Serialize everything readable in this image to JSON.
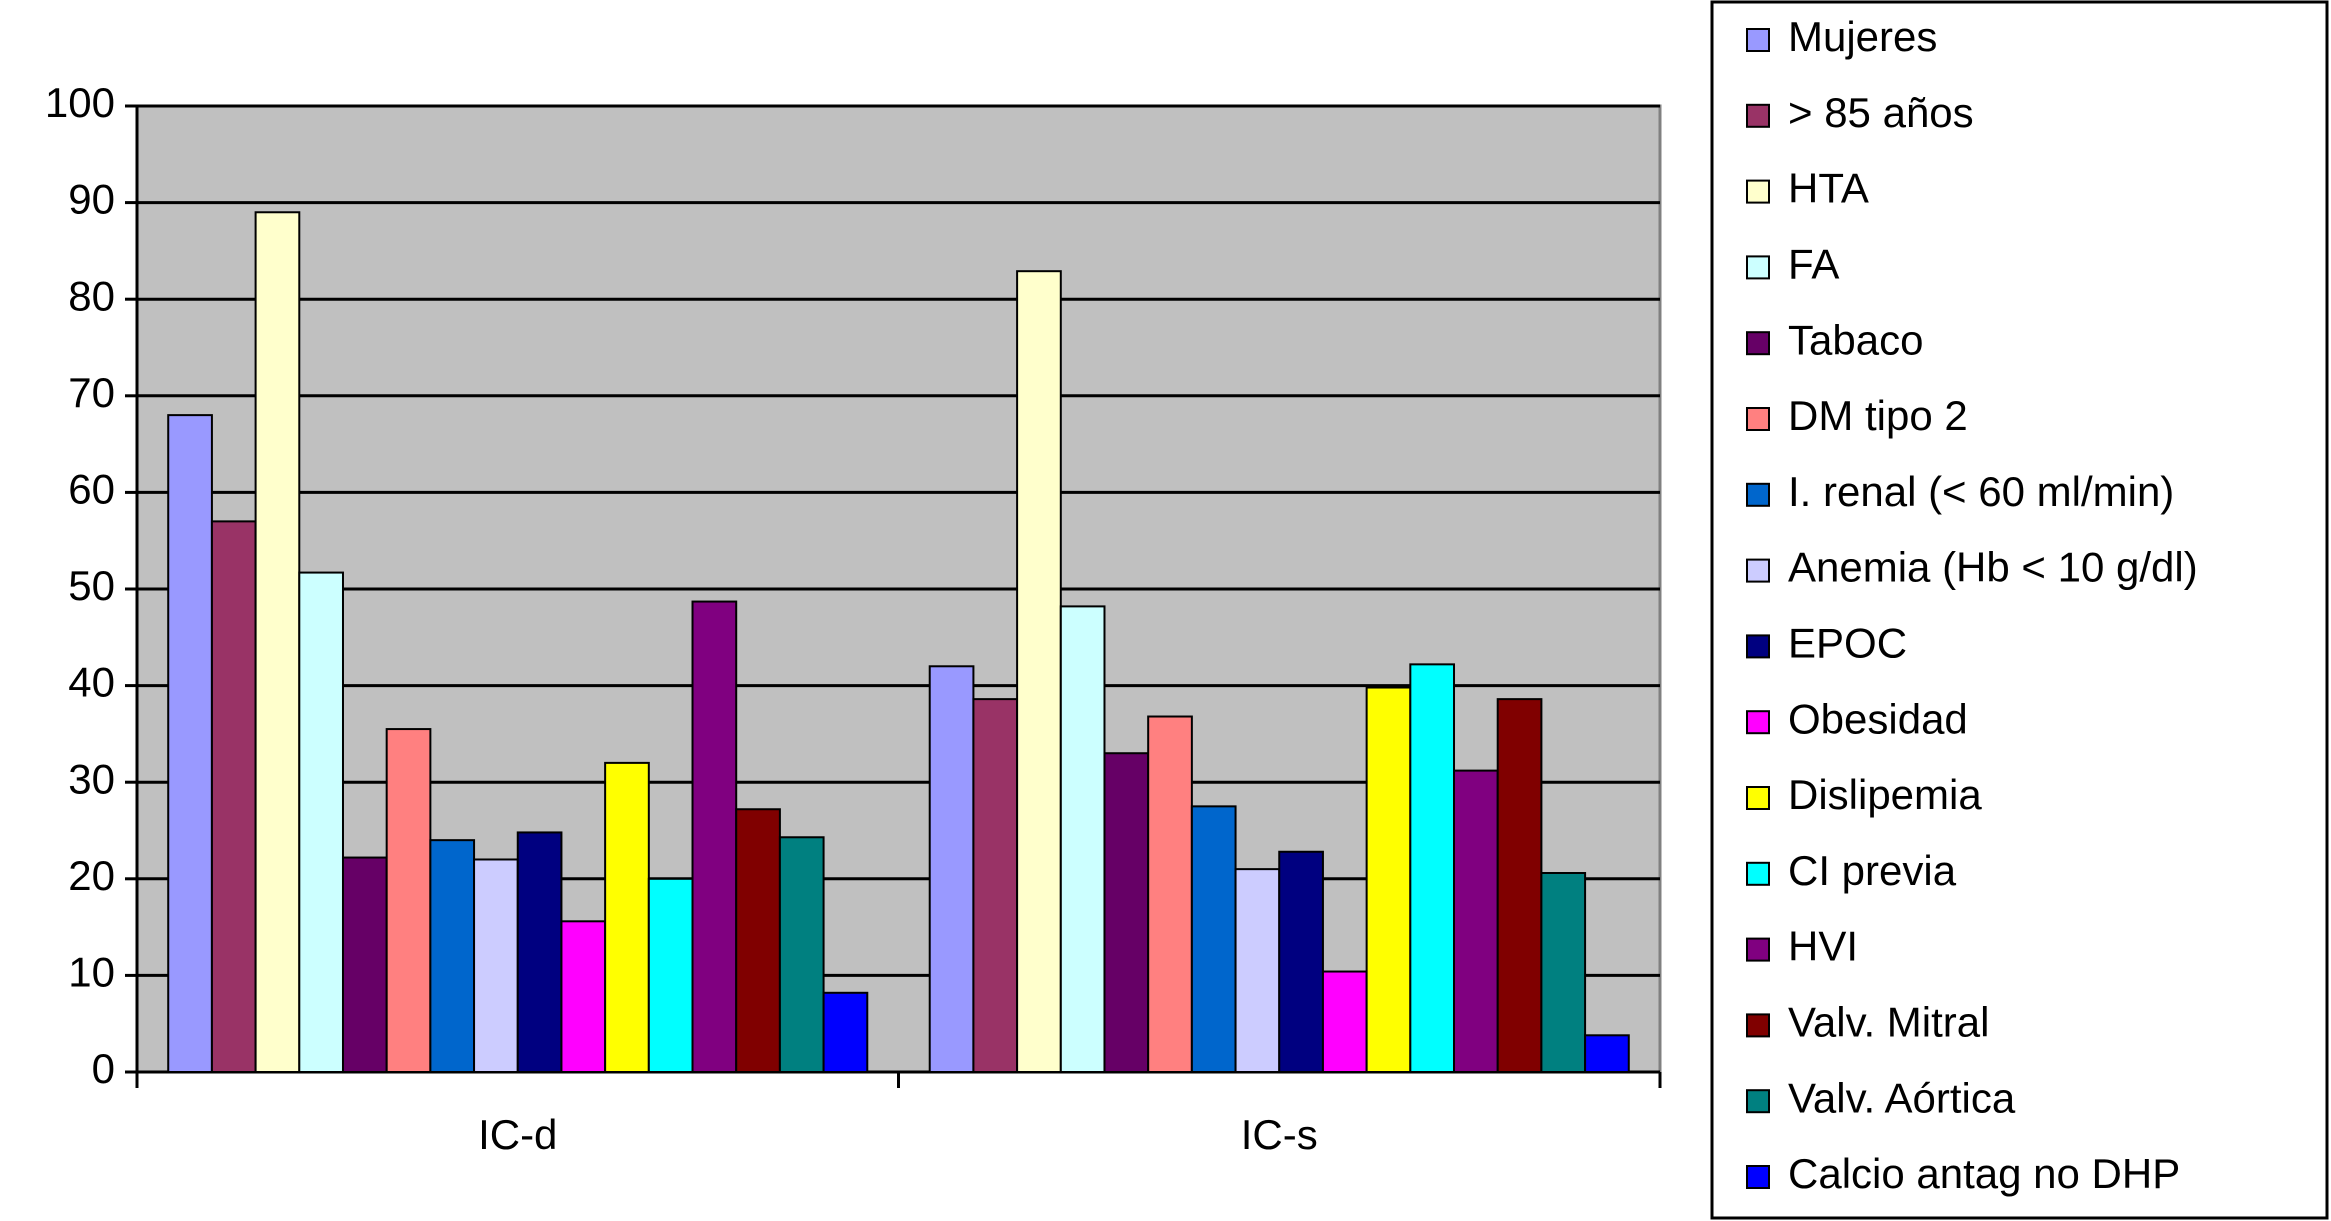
{
  "chart_data": {
    "type": "bar",
    "categories": [
      "IC-d",
      "IC-s"
    ],
    "series": [
      {
        "name": "Mujeres",
        "color": "#9999ff",
        "values": [
          68,
          42
        ]
      },
      {
        "name": "> 85 años",
        "color": "#993366",
        "values": [
          57,
          38.6
        ]
      },
      {
        "name": "HTA",
        "color": "#ffffcc",
        "values": [
          89,
          82.9
        ]
      },
      {
        "name": "FA",
        "color": "#ccffff",
        "values": [
          51.7,
          48.2
        ]
      },
      {
        "name": "Tabaco",
        "color": "#660066",
        "values": [
          22.2,
          33
        ]
      },
      {
        "name": "DM tipo 2",
        "color": "#ff8080",
        "values": [
          35.5,
          36.8
        ]
      },
      {
        "name": "I. renal (< 60 ml/min)",
        "color": "#0066cc",
        "values": [
          24,
          27.5
        ]
      },
      {
        "name": "Anemia  (Hb < 10 g/dl)",
        "color": "#ccccff",
        "values": [
          22,
          21
        ]
      },
      {
        "name": "EPOC",
        "color": "#000080",
        "values": [
          24.8,
          22.8
        ]
      },
      {
        "name": "Obesidad",
        "color": "#ff00ff",
        "values": [
          15.6,
          10.4
        ]
      },
      {
        "name": "Dislipemia",
        "color": "#ffff00",
        "values": [
          32,
          39.8
        ]
      },
      {
        "name": "CI previa",
        "color": "#00ffff",
        "values": [
          20,
          42.2
        ]
      },
      {
        "name": "HVI",
        "color": "#800080",
        "values": [
          48.7,
          31.2
        ]
      },
      {
        "name": "Valv. Mitral",
        "color": "#800000",
        "values": [
          27.2,
          38.6
        ]
      },
      {
        "name": "Valv. Aórtica",
        "color": "#008080",
        "values": [
          24.3,
          20.6
        ]
      },
      {
        "name": "Calcio antag no DHP",
        "color": "#0000ff",
        "values": [
          8.2,
          3.8
        ]
      }
    ],
    "ylim": [
      0,
      100
    ],
    "yticks": [
      0,
      10,
      20,
      30,
      40,
      50,
      60,
      70,
      80,
      90,
      100
    ],
    "grid": true,
    "legend": "right"
  }
}
